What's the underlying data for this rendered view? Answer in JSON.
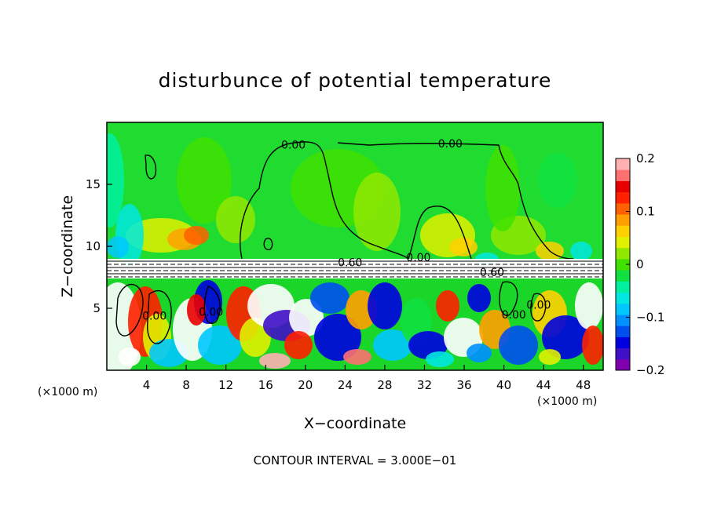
{
  "chart_data": {
    "type": "heatmap",
    "title": "disturbunce of potential temperature",
    "xlabel": "X−coordinate",
    "ylabel": "Z−coordinate",
    "x_unit_left": "(×1000 m)",
    "x_unit_right": "(×1000 m)",
    "xlim": [
      0,
      50
    ],
    "ylim": [
      0,
      20
    ],
    "x_ticks": [
      4,
      8,
      12,
      16,
      20,
      24,
      28,
      32,
      36,
      40,
      44,
      48
    ],
    "y_ticks": [
      5,
      10,
      15
    ],
    "colorbar": {
      "range": [
        -0.2,
        0.2
      ],
      "tick_values": [
        0.2,
        0.1,
        0,
        -0.1,
        -0.2
      ],
      "tick_labels": [
        "0.2",
        "0.1",
        "0",
        "−0.1",
        "−0.2"
      ],
      "colors": [
        "#8000b0",
        "#4010c8",
        "#0000e0",
        "#0050f0",
        "#0090ff",
        "#00c8ff",
        "#00e8e0",
        "#00f0a0",
        "#10e040",
        "#40e000",
        "#90e800",
        "#e0f000",
        "#ffd000",
        "#ffa000",
        "#ff6000",
        "#ff2000",
        "#e80000",
        "#ff7070",
        "#ffb0b0"
      ]
    },
    "contour_interval_text": "CONTOUR INTERVAL = 3.000E−01",
    "contour_labels": [
      {
        "text": "0.00",
        "x": 18.8,
        "z": 18.2
      },
      {
        "text": "0.00",
        "x": 34.6,
        "z": 18.3
      },
      {
        "text": "0.60",
        "x": 24.5,
        "z": 8.7
      },
      {
        "text": "0.00",
        "x": 31.4,
        "z": 9.1
      },
      {
        "text": "0.60",
        "x": 38.8,
        "z": 7.9
      },
      {
        "text": "0.00",
        "x": 4.8,
        "z": 4.4
      },
      {
        "text": "0.00",
        "x": 10.5,
        "z": 4.7
      },
      {
        "text": "0.00",
        "x": 41.0,
        "z": 4.5
      },
      {
        "text": "0.00",
        "x": 43.5,
        "z": 5.3
      }
    ],
    "grid": false
  }
}
